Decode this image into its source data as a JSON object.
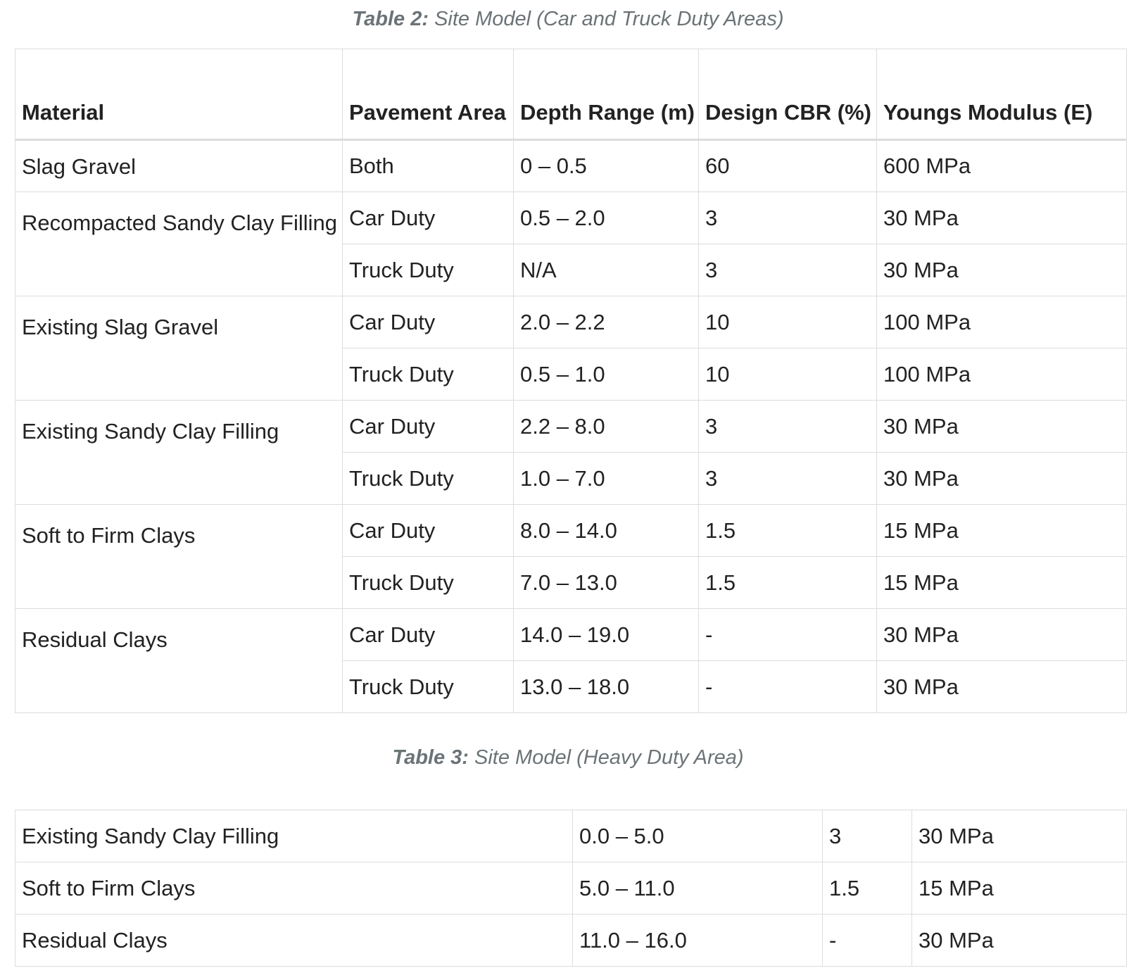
{
  "table2": {
    "caption_label": "Table 2:",
    "caption_text": " Site Model (Car and Truck Duty Areas)",
    "headers": {
      "material": "Material",
      "pavement_area": "Pavement Area",
      "depth_range": "Depth Range (m)",
      "design_cbr": "Design CBR (%)",
      "youngs_modulus": "Youngs Modulus (E)"
    },
    "groups": [
      {
        "material": "Slag Gravel",
        "rows": [
          {
            "area": "Both",
            "depth": "0 – 0.5",
            "cbr": "60",
            "modulus": "600 MPa"
          }
        ]
      },
      {
        "material": "Recompacted Sandy Clay Filling",
        "rows": [
          {
            "area": "Car Duty",
            "depth": "0.5 – 2.0",
            "cbr": "3",
            "modulus": "30 MPa"
          },
          {
            "area": "Truck Duty",
            "depth": "N/A",
            "cbr": "3",
            "modulus": "30 MPa"
          }
        ]
      },
      {
        "material": "Existing Slag Gravel",
        "rows": [
          {
            "area": "Car Duty",
            "depth": "2.0 – 2.2",
            "cbr": "10",
            "modulus": "100 MPa"
          },
          {
            "area": "Truck Duty",
            "depth": "0.5 – 1.0",
            "cbr": "10",
            "modulus": "100 MPa"
          }
        ]
      },
      {
        "material": "Existing Sandy Clay Filling",
        "rows": [
          {
            "area": "Car Duty",
            "depth": "2.2 – 8.0",
            "cbr": "3",
            "modulus": "30 MPa"
          },
          {
            "area": "Truck Duty",
            "depth": "1.0 – 7.0",
            "cbr": "3",
            "modulus": "30 MPa"
          }
        ]
      },
      {
        "material": "Soft to Firm Clays",
        "rows": [
          {
            "area": "Car Duty",
            "depth": "8.0 – 14.0",
            "cbr": "1.5",
            "modulus": "15 MPa"
          },
          {
            "area": "Truck Duty",
            "depth": "7.0 – 13.0",
            "cbr": "1.5",
            "modulus": "15 MPa"
          }
        ]
      },
      {
        "material": "Residual Clays",
        "rows": [
          {
            "area": "Car Duty",
            "depth": "14.0 – 19.0",
            "cbr": "-",
            "modulus": "30 MPa"
          },
          {
            "area": "Truck Duty",
            "depth": "13.0 – 18.0",
            "cbr": "-",
            "modulus": "30 MPa"
          }
        ]
      }
    ]
  },
  "table3": {
    "caption_label": "Table 3:",
    "caption_text": " Site Model (Heavy Duty Area)",
    "rows": [
      {
        "material": "Existing Sandy Clay Filling",
        "depth": "0.0 – 5.0",
        "cbr": "3",
        "modulus": "30 MPa"
      },
      {
        "material": "Soft to Firm Clays",
        "depth": "5.0 – 11.0",
        "cbr": "1.5",
        "modulus": "15 MPa"
      },
      {
        "material": "Residual Clays",
        "depth": "11.0 – 16.0",
        "cbr": "-",
        "modulus": "30 MPa"
      }
    ]
  }
}
